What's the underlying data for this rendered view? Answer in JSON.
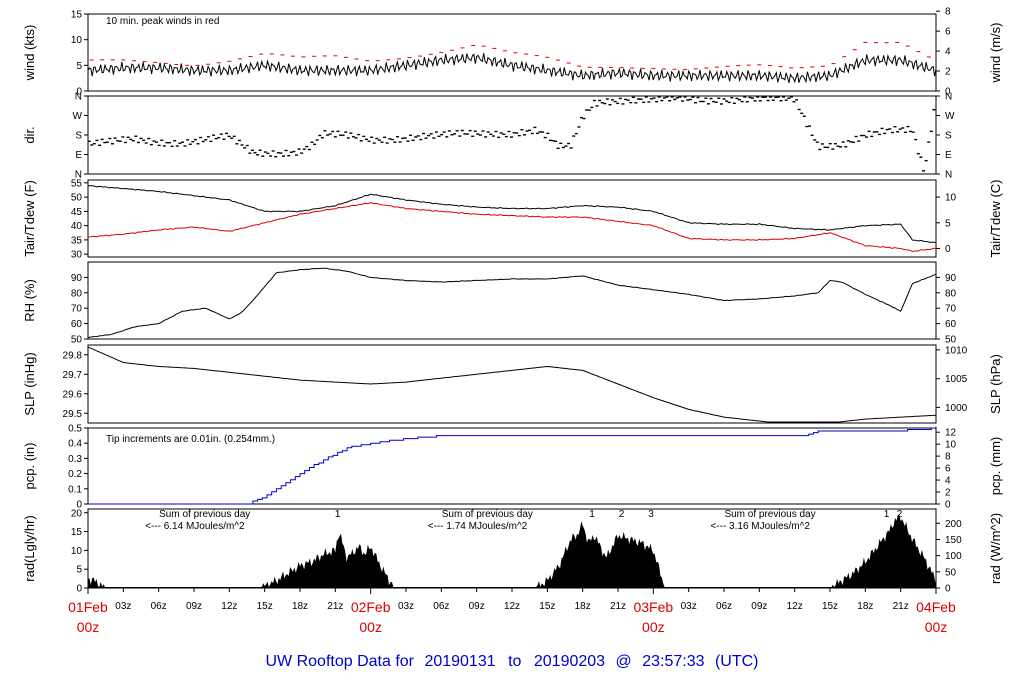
{
  "footer": {
    "title_prefix": "UW Rooftop Data for",
    "start": "20190131",
    "to": "to",
    "end": "20190203",
    "at": "@",
    "time": "23:57:33",
    "tz": "(UTC)"
  },
  "colors": {
    "black": "#000000",
    "red": "#e00000",
    "blue": "#0000cc",
    "purple": "#9900cc"
  },
  "x_axis": {
    "hour_ticks": [
      "03z",
      "06z",
      "09z",
      "12z",
      "15z",
      "18z",
      "21z",
      "03z",
      "06z",
      "09z",
      "12z",
      "15z",
      "18z",
      "21z",
      "03z",
      "06z",
      "09z",
      "12z",
      "15z",
      "18z",
      "21z"
    ],
    "hour_positions_hours": [
      3,
      6,
      9,
      12,
      15,
      18,
      21,
      27,
      30,
      33,
      36,
      39,
      42,
      45,
      51,
      54,
      57,
      60,
      63,
      66,
      69
    ],
    "day_labels": [
      {
        "date": "01Feb",
        "time": "00z",
        "hours": 0
      },
      {
        "date": "02Feb",
        "time": "00z",
        "hours": 24
      },
      {
        "date": "03Feb",
        "time": "00z",
        "hours": 48
      },
      {
        "date": "04Feb",
        "time": "00z",
        "hours": 72
      }
    ]
  },
  "chart_data": [
    {
      "id": "wind",
      "type": "line",
      "ylabel": "wind (kts)",
      "ylabel_right": "wind (m/s)",
      "ylim": [
        0,
        15
      ],
      "yticks": [
        0,
        5,
        10,
        15
      ],
      "right_ticks": [
        "0",
        "2",
        "4",
        "6",
        "8"
      ],
      "right_ticks_values": [
        0,
        3.89,
        7.78,
        11.66,
        15.55
      ],
      "annotation": "10 min. peak winds in red",
      "series": [
        {
          "color": "#000000",
          "x": [
            0,
            3,
            6,
            9,
            12,
            15,
            18,
            21,
            24,
            27,
            30,
            33,
            36,
            39,
            42,
            45,
            48,
            51,
            54,
            57,
            60,
            63,
            66,
            69,
            72
          ],
          "y": [
            4,
            4.5,
            4.5,
            4,
            4,
            5,
            4,
            4,
            4,
            5,
            6,
            6.5,
            5,
            4,
            3,
            3.5,
            3,
            3,
            3,
            3,
            2.5,
            3,
            6,
            6,
            4
          ]
        },
        {
          "color": "#e00000",
          "x": [
            0,
            3,
            6,
            9,
            12,
            15,
            18,
            21,
            24,
            27,
            30,
            33,
            36,
            39,
            42,
            45,
            48,
            51,
            54,
            57,
            60,
            63,
            66,
            69,
            72
          ],
          "y": [
            5.5,
            6,
            6,
            5.5,
            6,
            7,
            6,
            6.5,
            6,
            7,
            8,
            9,
            7,
            6,
            4.5,
            5,
            5,
            4.5,
            4.5,
            4.5,
            4,
            5,
            10,
            10,
            6
          ]
        }
      ]
    },
    {
      "id": "dir",
      "type": "scatter",
      "ylabel": "dir.",
      "ylim": [
        0,
        360
      ],
      "yticks_labels": [
        "N",
        "E",
        "S",
        "W",
        "N"
      ],
      "yticks_values": [
        0,
        90,
        180,
        270,
        360
      ],
      "right_ticks": [
        "N",
        "E",
        "S",
        "W",
        "N"
      ],
      "right_ticks_values": [
        0,
        90,
        180,
        270,
        360
      ],
      "series": [
        {
          "color": "#000000",
          "x": [
            0,
            2,
            4,
            6,
            8,
            10,
            12,
            14,
            16,
            18,
            19,
            20,
            22,
            24,
            26,
            28,
            30,
            32,
            34,
            36,
            38,
            39,
            40,
            41,
            42,
            43,
            44,
            46,
            48,
            50,
            52,
            54,
            56,
            58,
            60,
            62,
            64,
            66,
            68,
            70,
            71,
            72
          ],
          "y": [
            135,
            145,
            160,
            150,
            145,
            155,
            170,
            100,
            100,
            105,
            130,
            180,
            175,
            160,
            165,
            170,
            175,
            185,
            190,
            190,
            200,
            170,
            120,
            125,
            260,
            330,
            340,
            345,
            340,
            345,
            340,
            345,
            350,
            345,
            340,
            130,
            140,
            180,
            195,
            200,
            10,
            350
          ]
        }
      ]
    },
    {
      "id": "temp",
      "type": "line",
      "ylabel": "Tair/Tdew (F)",
      "ylabel_right": "Tair/Tdew (C)",
      "ylim": [
        29,
        56
      ],
      "yticks": [
        30,
        35,
        40,
        45,
        50,
        55
      ],
      "right_ticks": [
        "0",
        "5",
        "10"
      ],
      "right_ticks_values": [
        32,
        41,
        50
      ],
      "series": [
        {
          "color": "#000000",
          "x": [
            0,
            3,
            6,
            9,
            12,
            15,
            18,
            21,
            24,
            27,
            30,
            33,
            36,
            39,
            42,
            45,
            48,
            51,
            54,
            57,
            60,
            63,
            66,
            69,
            70,
            72
          ],
          "y": [
            54,
            53,
            52,
            50.5,
            49,
            45,
            45,
            47,
            51,
            49,
            47.5,
            46.5,
            46,
            46,
            47,
            46.5,
            45,
            41,
            40.5,
            40.5,
            39,
            38.5,
            40,
            40.5,
            35,
            34
          ]
        },
        {
          "color": "#e00000",
          "x": [
            0,
            3,
            6,
            9,
            12,
            15,
            18,
            21,
            24,
            27,
            30,
            33,
            36,
            39,
            42,
            45,
            48,
            51,
            54,
            57,
            60,
            63,
            66,
            69,
            70,
            72
          ],
          "y": [
            36,
            37,
            38.5,
            39.5,
            38,
            41,
            44,
            46,
            48,
            46,
            45,
            44,
            43.5,
            43,
            43,
            41.5,
            40,
            35.5,
            35,
            35,
            35.5,
            37.5,
            33,
            32,
            31,
            32
          ]
        }
      ]
    },
    {
      "id": "rh",
      "type": "line",
      "ylabel": "RH (%)",
      "ylim": [
        50,
        100
      ],
      "yticks": [
        50,
        60,
        70,
        80,
        90
      ],
      "right_ticks": [
        "50",
        "60",
        "70",
        "80",
        "90"
      ],
      "right_ticks_values": [
        50,
        60,
        70,
        80,
        90
      ],
      "series": [
        {
          "color": "#000000",
          "x": [
            0,
            2,
            4,
            6,
            8,
            10,
            12,
            13,
            14,
            16,
            18,
            20,
            22,
            24,
            27,
            30,
            33,
            36,
            39,
            42,
            45,
            48,
            51,
            54,
            57,
            60,
            62,
            63,
            64,
            66,
            68,
            69,
            70,
            72
          ],
          "y": [
            51,
            53,
            58,
            60,
            68,
            70,
            63,
            67,
            75,
            93,
            95,
            96,
            94,
            90,
            88,
            87,
            88,
            89,
            89,
            91,
            85,
            82,
            79,
            75,
            76,
            78,
            80,
            88,
            87,
            79,
            72,
            68,
            86,
            92
          ]
        }
      ]
    },
    {
      "id": "slp",
      "type": "line",
      "ylabel": "SLP (inHg)",
      "ylabel_right": "SLP (hPa)",
      "ylim": [
        29.45,
        29.85
      ],
      "yticks": [
        29.5,
        29.6,
        29.7,
        29.8
      ],
      "right_ticks": [
        "1000",
        "1005",
        "1010"
      ],
      "right_ticks_values": [
        29.53,
        29.677,
        29.825
      ],
      "series": [
        {
          "color": "#000000",
          "x": [
            0,
            3,
            6,
            9,
            12,
            15,
            18,
            21,
            24,
            27,
            30,
            33,
            36,
            39,
            42,
            45,
            48,
            51,
            54,
            57,
            60,
            63,
            66,
            69,
            72
          ],
          "y": [
            29.84,
            29.76,
            29.74,
            29.73,
            29.71,
            29.69,
            29.67,
            29.66,
            29.65,
            29.66,
            29.68,
            29.7,
            29.72,
            29.74,
            29.72,
            29.65,
            29.58,
            29.52,
            29.48,
            29.46,
            29.44,
            29.45,
            29.47,
            29.48,
            29.49
          ]
        }
      ]
    },
    {
      "id": "pcp",
      "type": "line",
      "ylabel": "pcp. (in)",
      "ylabel_right": "pcp. (mm)",
      "ylim": [
        0,
        0.5
      ],
      "yticks": [
        0,
        0.1,
        0.2,
        0.3,
        0.4,
        0.5
      ],
      "right_ticks": [
        "0",
        "2",
        "4",
        "6",
        "8",
        "10",
        "12"
      ],
      "right_ticks_values": [
        0,
        0.0787,
        0.1575,
        0.2362,
        0.315,
        0.3937,
        0.4724
      ],
      "annotation": "Tip increments are 0.01in. (0.254mm.)",
      "series": [
        {
          "color": "#0000cc",
          "x": [
            0,
            13.5,
            15,
            17,
            19,
            21,
            22,
            24,
            27,
            30,
            33,
            36,
            39,
            42,
            45,
            48,
            51,
            54,
            57,
            60,
            61,
            62,
            65,
            68,
            71,
            71.5,
            72
          ],
          "y": [
            0,
            0,
            0.05,
            0.15,
            0.25,
            0.33,
            0.37,
            0.4,
            0.43,
            0.45,
            0.45,
            0.45,
            0.45,
            0.45,
            0.45,
            0.45,
            0.45,
            0.45,
            0.45,
            0.45,
            0.45,
            0.48,
            0.48,
            0.48,
            0.49,
            0.5,
            0.51
          ]
        }
      ]
    },
    {
      "id": "rad",
      "type": "area",
      "ylabel": "rad(Lgly/hr)",
      "ylabel_right": "rad (W/m^2)",
      "ylim": [
        0,
        21
      ],
      "yticks": [
        0,
        5,
        10,
        15,
        20
      ],
      "right_ticks": [
        "0",
        "50",
        "100",
        "150",
        "200"
      ],
      "right_ticks_values": [
        0,
        4.3,
        8.6,
        12.9,
        17.2
      ],
      "annotations": [
        {
          "line1": "Sum of previous day",
          "line2": "<--- 6.14 MJoules/m^2",
          "hours": 4
        },
        {
          "line1": "Sum of previous day",
          "line2": "<--- 1.74 MJoules/m^2",
          "hours": 28
        },
        {
          "line1": "Sum of previous day",
          "line2": "<--- 3.16 MJoules/m^2",
          "hours": 52
        }
      ],
      "markers": [
        {
          "label": "1",
          "hours": 21.2
        },
        {
          "label": "1",
          "hours": 42.8
        },
        {
          "label": "2",
          "hours": 45.3
        },
        {
          "label": "3",
          "hours": 47.8
        },
        {
          "label": "1",
          "hours": 67.8
        },
        {
          "label": "2",
          "hours": 68.9
        }
      ],
      "series": [
        {
          "color": "#000000",
          "x": [
            0,
            0.5,
            1,
            1.5,
            14.5,
            15,
            16,
            17,
            18,
            19,
            20,
            21,
            21.3,
            22,
            23,
            23.5,
            24,
            25,
            26,
            38,
            39,
            40,
            41,
            41.5,
            42,
            42.5,
            43,
            44,
            45,
            46,
            47,
            48,
            48.5,
            49,
            63,
            64,
            65,
            66,
            67,
            68,
            68.5,
            69,
            70,
            71,
            72
          ],
          "y": [
            2.5,
            2,
            1,
            0,
            0,
            0.5,
            2,
            4,
            6,
            7,
            9,
            10,
            15,
            8,
            11,
            9,
            11,
            5,
            0,
            0,
            2,
            6,
            13,
            14,
            17,
            12,
            14,
            8,
            14,
            13,
            12,
            10,
            5,
            0,
            0,
            2,
            4,
            7,
            11,
            15,
            18,
            19,
            13,
            8,
            2
          ]
        }
      ]
    }
  ]
}
